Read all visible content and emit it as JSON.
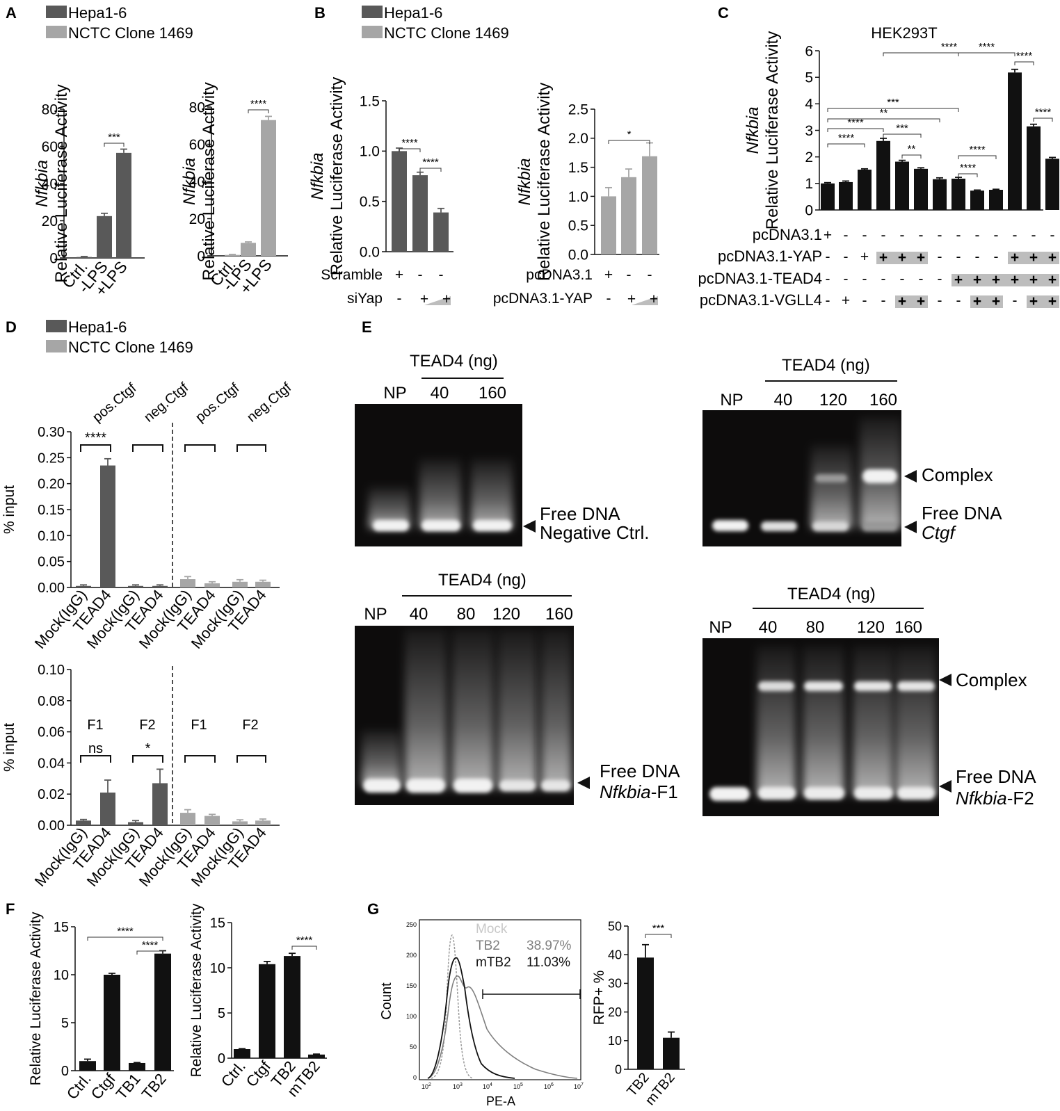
{
  "colors": {
    "hepa": "#595959",
    "nctc": "#a6a6a6",
    "black_bar": "#111111",
    "gel_bg": "#0d0c0c",
    "band": "#f2f2f2",
    "gray_wedge": "#bdbdbd"
  },
  "legend": {
    "hepa": "Hepa1-6",
    "nctc": "NCTC Clone 1469"
  },
  "panels": {
    "A": "A",
    "B": "B",
    "C": "C",
    "D": "D",
    "E": "E",
    "F": "F",
    "G": "G"
  },
  "gene": "Nfkbia",
  "ylabel_rla": "Relative Luciferase Activity",
  "ylabel_input": "% input",
  "ylabel_count": "Count",
  "ylabel_rfp": "RFP+ %",
  "xlabel_pe": "PE-A",
  "c_title": "HEK293T",
  "b_rows": {
    "scramble": "Scramble",
    "siyap": "siYap",
    "pcdna": "pcDNA3.1",
    "pcdna_yap": "pcDNA3.1-YAP",
    "plus": "+",
    "minus": "-"
  },
  "c_rows": {
    "pcdna": "pcDNA3.1",
    "yap": "pcDNA3.1-YAP",
    "tead4": "pcDNA3.1-TEAD4",
    "vgll4": "pcDNA3.1-VGLL4"
  },
  "d_labels": {
    "pos": "pos.Ctgf",
    "neg": "neg.Ctgf",
    "f1": "F1",
    "f2": "F2",
    "ns": "ns",
    "mock": "Mock(IgG)",
    "tead4": "TEAD4"
  },
  "e_labels": {
    "tead4_ng": "TEAD4 (ng)",
    "np": "NP",
    "complex": "Complex",
    "free_dna": "Free DNA",
    "neg_ctrl": "Negative Ctrl.",
    "ctgf": "Ctgf",
    "nfkbia_f1": "-F1",
    "nfkbia_f2": "-F2",
    "l40": "40",
    "l80": "80",
    "l120": "120",
    "l160": "160"
  },
  "g_legend": {
    "mock": "Mock",
    "tb2": "TB2",
    "tb2_pct": "38.97%",
    "mtb2": "mTB2",
    "mtb2_pct": "11.03%"
  },
  "chart_data": [
    {
      "id": "A-left",
      "type": "bar",
      "categories": [
        "Ctrl.",
        "-LPS",
        "+LPS"
      ],
      "values": [
        0.5,
        22.5,
        56.5
      ],
      "errors": [
        0.3,
        1.5,
        2.0
      ],
      "ylim": [
        0,
        80
      ],
      "yticks": [
        0,
        20,
        40,
        60,
        80
      ],
      "ylabel": "Nfkbia Relative Luciferase Activity",
      "significance": [
        {
          "from": 1,
          "to": 2,
          "label": "***"
        }
      ]
    },
    {
      "id": "A-right",
      "type": "bar",
      "categories": [
        "Ctrl.",
        "-LPS",
        "+LPS"
      ],
      "values": [
        0.5,
        7,
        73
      ],
      "errors": [
        0.3,
        0.5,
        2.0
      ],
      "ylim": [
        0,
        80
      ],
      "yticks": [
        0,
        20,
        40,
        60,
        80
      ],
      "ylabel": "Nfkbia Relative Luciferase Activity",
      "significance": [
        {
          "from": 1,
          "to": 2,
          "label": "****"
        }
      ]
    },
    {
      "id": "B-left",
      "type": "bar",
      "categories": [
        "Scramble",
        "siYap (low)",
        "siYap (high)"
      ],
      "values": [
        1.0,
        0.76,
        0.39
      ],
      "errors": [
        0.03,
        0.03,
        0.04
      ],
      "ylim": [
        0,
        1.5
      ],
      "yticks": [
        "0.0",
        "0.5",
        "1.0",
        "1.5"
      ],
      "ylabel": "Nfkbia Relative Luciferase Activity",
      "significance": [
        {
          "from": 0,
          "to": 1,
          "label": "****"
        },
        {
          "from": 1,
          "to": 2,
          "label": "****"
        }
      ]
    },
    {
      "id": "B-right",
      "type": "bar",
      "categories": [
        "pcDNA3.1",
        "pcDNA3.1-YAP (low)",
        "pcDNA3.1-YAP (high)"
      ],
      "values": [
        1.0,
        1.33,
        1.69
      ],
      "errors": [
        0.15,
        0.14,
        0.23
      ],
      "ylim": [
        0,
        2.5
      ],
      "yticks": [
        "0.0",
        "0.5",
        "1.0",
        "1.5",
        "2.0",
        "2.5"
      ],
      "ylabel": "Nfkbia Relative Luciferase Activity",
      "significance": [
        {
          "from": 0,
          "to": 2,
          "label": "*"
        }
      ]
    },
    {
      "id": "C",
      "type": "bar",
      "title": "HEK293T",
      "values": [
        1.0,
        1.05,
        1.52,
        2.6,
        1.82,
        1.55,
        1.16,
        1.18,
        0.73,
        0.76,
        5.18,
        3.15,
        1.93
      ],
      "errors": [
        0.03,
        0.04,
        0.03,
        0.1,
        0.05,
        0.04,
        0.05,
        0.05,
        0.02,
        0.02,
        0.12,
        0.08,
        0.05
      ],
      "ylim": [
        0,
        6
      ],
      "yticks": [
        0,
        1,
        2,
        3,
        4,
        5,
        6
      ],
      "ylabel": "Nfkbia Relative Luciferase Activity",
      "significance": [
        {
          "from": 0,
          "to": 2,
          "label": "****"
        },
        {
          "from": 0,
          "to": 3,
          "label": "****"
        },
        {
          "from": 0,
          "to": 6,
          "label": "**"
        },
        {
          "from": 0,
          "to": 7,
          "label": "***"
        },
        {
          "from": 3,
          "to": 5,
          "label": "***"
        },
        {
          "from": 4,
          "to": 5,
          "label": "**"
        },
        {
          "from": 7,
          "to": 8,
          "label": "****"
        },
        {
          "from": 7,
          "to": 9,
          "label": "****"
        },
        {
          "from": 7,
          "to": 10,
          "label": "****"
        },
        {
          "from": 3,
          "to": 10,
          "label": "****"
        },
        {
          "from": 10,
          "to": 11,
          "label": "****"
        },
        {
          "from": 11,
          "to": 12,
          "label": "****"
        }
      ],
      "rows": {
        "pcdna": [
          "+",
          "-",
          "-",
          "-",
          "-",
          "-",
          "-",
          "-",
          "-",
          "-",
          "-",
          "-",
          "-"
        ],
        "yap": [
          "-",
          "-",
          "+",
          "w",
          "w",
          "w",
          "-",
          "-",
          "-",
          "-",
          "w",
          "w",
          "w"
        ],
        "tead4": [
          "-",
          "-",
          "-",
          "-",
          "-",
          "-",
          "-",
          "w",
          "w",
          "w",
          "w",
          "w",
          "w"
        ],
        "vgll4": [
          "-",
          "+",
          "-",
          "-",
          "w",
          "w",
          "-",
          "-",
          "w",
          "w",
          "-",
          "w",
          "w"
        ]
      }
    },
    {
      "id": "D-top",
      "type": "bar",
      "categories": [
        "Mock(IgG)",
        "TEAD4",
        "Mock(IgG)",
        "TEAD4",
        "Mock(IgG)",
        "TEAD4",
        "Mock(IgG)",
        "TEAD4"
      ],
      "values": [
        0.003,
        0.235,
        0.003,
        0.003,
        0.016,
        0.008,
        0.011,
        0.011
      ],
      "errors": [
        0.002,
        0.013,
        0.002,
        0.002,
        0.005,
        0.003,
        0.004,
        0.003
      ],
      "ylim": [
        0,
        0.3
      ],
      "yticks": [
        "0.00",
        "0.05",
        "0.10",
        "0.15",
        "0.20",
        "0.25",
        "0.30"
      ],
      "ylabel": "% input",
      "groups": [
        "pos.Ctgf",
        "neg.Ctgf",
        "pos.Ctgf",
        "neg.Ctgf"
      ],
      "significance": [
        {
          "from": 0,
          "to": 1,
          "label": "****"
        }
      ]
    },
    {
      "id": "D-bottom",
      "type": "bar",
      "categories": [
        "Mock(IgG)",
        "TEAD4",
        "Mock(IgG)",
        "TEAD4",
        "Mock(IgG)",
        "TEAD4",
        "Mock(IgG)",
        "TEAD4"
      ],
      "values": [
        0.003,
        0.021,
        0.002,
        0.027,
        0.008,
        0.006,
        0.0025,
        0.003
      ],
      "errors": [
        0.0007,
        0.008,
        0.001,
        0.009,
        0.002,
        0.001,
        0.001,
        0.001
      ],
      "ylim": [
        0,
        0.1
      ],
      "yticks": [
        "0.00",
        "0.02",
        "0.04",
        "0.06",
        "0.08",
        "0.10"
      ],
      "ylabel": "% input",
      "groups": [
        "F1",
        "F2",
        "F1",
        "F2"
      ],
      "significance": [
        {
          "from": 0,
          "to": 1,
          "label": "ns"
        },
        {
          "from": 2,
          "to": 3,
          "label": "*"
        }
      ]
    },
    {
      "id": "F-left",
      "type": "bar",
      "categories": [
        "Ctrl.",
        "Ctgf",
        "TB1",
        "TB2"
      ],
      "values": [
        1.0,
        10.0,
        0.8,
        12.2
      ],
      "errors": [
        0.2,
        0.15,
        0.05,
        0.3
      ],
      "ylim": [
        0,
        15
      ],
      "yticks": [
        0,
        5,
        10,
        15
      ],
      "ylabel": "Relative Luciferase Activity",
      "significance": [
        {
          "from": 0,
          "to": 3,
          "label": "****"
        },
        {
          "from": 2,
          "to": 3,
          "label": "****"
        }
      ]
    },
    {
      "id": "F-right",
      "type": "bar",
      "categories": [
        "Ctrl.",
        "Ctgf",
        "TB2",
        "mTB2"
      ],
      "values": [
        1.0,
        10.4,
        11.3,
        0.4
      ],
      "errors": [
        0.05,
        0.3,
        0.3,
        0.05
      ],
      "ylim": [
        0,
        15
      ],
      "yticks": [
        0,
        5,
        10,
        15
      ],
      "ylabel": "Relative Luciferase Activity",
      "significance": [
        {
          "from": 2,
          "to": 3,
          "label": "****"
        }
      ]
    },
    {
      "id": "G-right",
      "type": "bar",
      "categories": [
        "TB2",
        "mTB2"
      ],
      "values": [
        39,
        11
      ],
      "errors": [
        4.5,
        2
      ],
      "ylim": [
        0,
        50
      ],
      "yticks": [
        0,
        10,
        20,
        30,
        40,
        50
      ],
      "ylabel": "RFP+ %",
      "significance": [
        {
          "from": 0,
          "to": 1,
          "label": "***"
        }
      ]
    },
    {
      "id": "G-left",
      "type": "histogram",
      "xlabel": "PE-A",
      "ylabel": "Count",
      "xticks": [
        "10^2",
        "10^3",
        "10^4",
        "10^5",
        "10^6",
        "10^7"
      ],
      "yticks": [
        0,
        50,
        100,
        150,
        200,
        250
      ],
      "gate": "RFP+",
      "series": [
        {
          "name": "Mock"
        },
        {
          "name": "TB2"
        },
        {
          "name": "mTB2"
        }
      ]
    }
  ]
}
